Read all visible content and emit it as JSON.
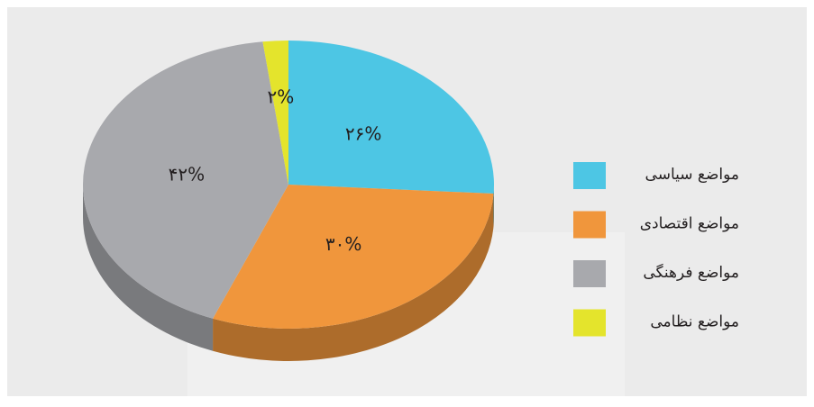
{
  "chart_data": {
    "type": "pie",
    "categories": [
      "مواضع سیاسی",
      "مواضع اقتصادی",
      "مواضع فرهنگی",
      "مواضع نظامی"
    ],
    "values": [
      26,
      30,
      42,
      2
    ],
    "value_labels": [
      "۲۶%",
      "۳۰%",
      "۴۲%",
      "۲%"
    ],
    "colors": [
      "#4dc6e4",
      "#f0963c",
      "#a8a9ad",
      "#e4e42c"
    ],
    "legend": "right"
  }
}
